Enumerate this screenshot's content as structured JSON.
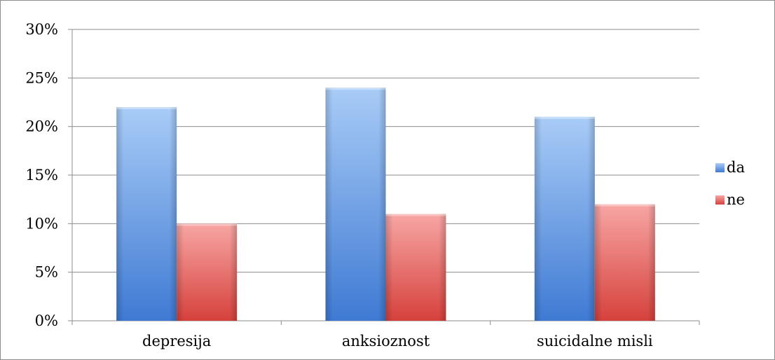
{
  "chart_data": {
    "type": "bar",
    "title": "",
    "xlabel": "",
    "ylabel": "",
    "categories": [
      "depresija",
      "anksioznost",
      "suicidalne misli"
    ],
    "series": [
      {
        "name": "da",
        "values": [
          22,
          24,
          21
        ],
        "color": "#4f81bd"
      },
      {
        "name": "ne",
        "values": [
          10,
          11,
          12
        ],
        "color": "#c0504d"
      }
    ],
    "ylim": [
      0,
      30
    ],
    "y_unit": "%",
    "y_ticks": [
      "0%",
      "5%",
      "10%",
      "15%",
      "20%",
      "25%",
      "30%"
    ],
    "grid": true,
    "legend_position": "right"
  }
}
